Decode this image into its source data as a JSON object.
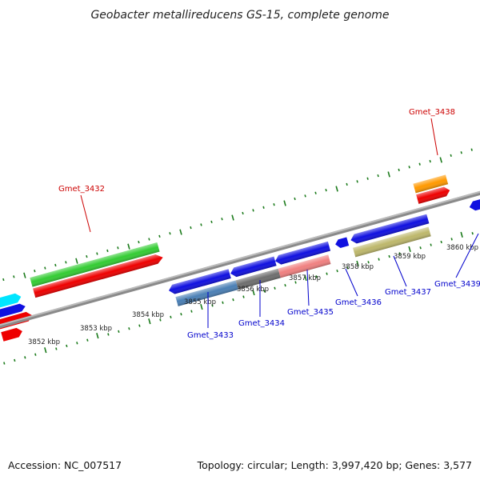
{
  "title": "Geobacter metallireducens GS-15, complete genome",
  "footer": {
    "accession": "Accession: NC_007517",
    "summary": "Topology: circular; Length: 3,997,420 bp; Genes: 3,577"
  },
  "colors": {
    "backbone": "#8a8a8a",
    "tick": "#1a7a1a",
    "label_top": "#cc0000",
    "label_bottom": "#0000cc"
  },
  "ruler_labels": [
    {
      "text": "3852 kbp",
      "pos": 3852
    },
    {
      "text": "3853 kbp",
      "pos": 3853
    },
    {
      "text": "3854 kbp",
      "pos": 3854
    },
    {
      "text": "3855 kbp",
      "pos": 3855
    },
    {
      "text": "3856 kbp",
      "pos": 3856
    },
    {
      "text": "3857 kbp",
      "pos": 3857
    },
    {
      "text": "3858 kbp",
      "pos": 3858
    },
    {
      "text": "3859 kbp",
      "pos": 3859
    },
    {
      "text": "3860 kbp",
      "pos": 3860
    }
  ],
  "gene_labels": {
    "top": [
      "Gmet_3432",
      "Gmet_3438"
    ],
    "bottom": [
      "Gmet_3433",
      "Gmet_3434",
      "Gmet_3435",
      "Gmet_3436",
      "Gmet_3437",
      "Gmet_3439"
    ]
  }
}
